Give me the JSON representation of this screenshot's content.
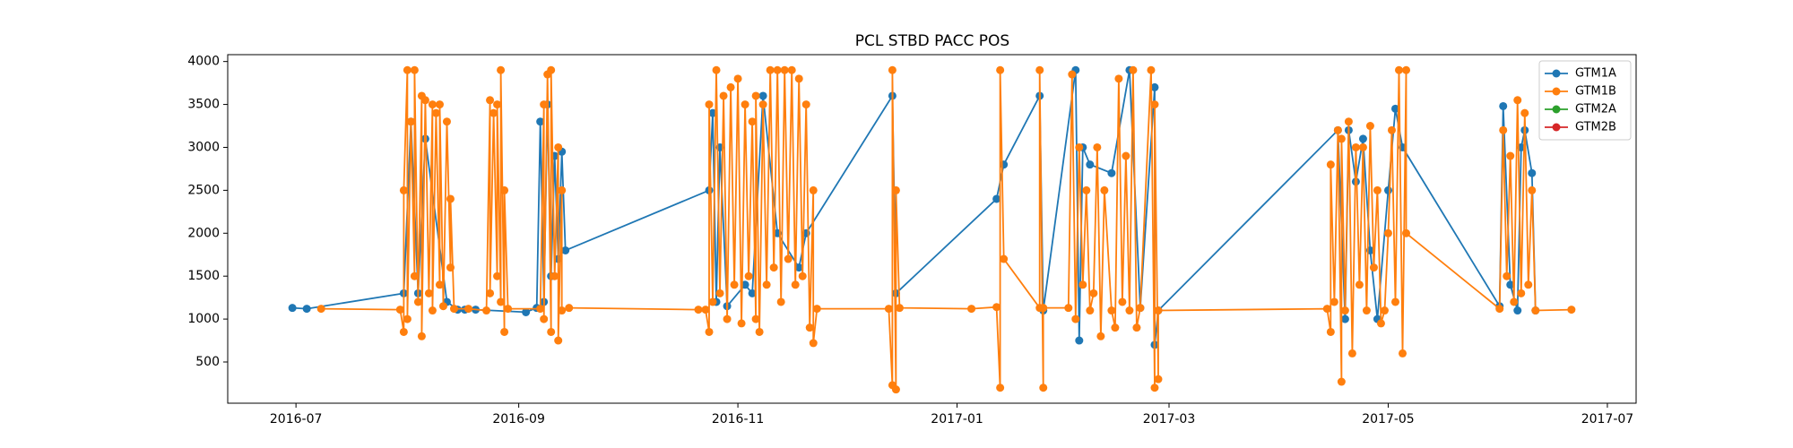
{
  "chart_data": {
    "type": "line",
    "title": "PCL STBD PACC POS",
    "xlim": [
      "2016-06-12",
      "2017-07-09"
    ],
    "xticks": [
      {
        "value": "2016-07-01",
        "label": "2016-07"
      },
      {
        "value": "2016-09-01",
        "label": "2016-09"
      },
      {
        "value": "2016-11-01",
        "label": "2016-11"
      },
      {
        "value": "2017-01-01",
        "label": "2017-01"
      },
      {
        "value": "2017-03-01",
        "label": "2017-03"
      },
      {
        "value": "2017-05-01",
        "label": "2017-05"
      },
      {
        "value": "2017-07-01",
        "label": "2017-07"
      }
    ],
    "ylim": [
      20,
      4080
    ],
    "yticks": [
      500,
      1000,
      1500,
      2000,
      2500,
      3000,
      3500,
      4000
    ],
    "grid": false,
    "legend": "upper right",
    "series": [
      {
        "name": "GTM1A",
        "color": "#1f77b4",
        "x": [
          "2016-06-30",
          "2016-07-04",
          "2016-07-31",
          "2016-08-02",
          "2016-08-04",
          "2016-08-06",
          "2016-08-12",
          "2016-08-15",
          "2016-08-17",
          "2016-08-20",
          "2016-09-03",
          "2016-09-06",
          "2016-09-07",
          "2016-09-08",
          "2016-09-09",
          "2016-09-10",
          "2016-09-11",
          "2016-09-12",
          "2016-09-13",
          "2016-09-14",
          "2016-10-24",
          "2016-10-25",
          "2016-10-26",
          "2016-10-27",
          "2016-10-29",
          "2016-11-03",
          "2016-11-05",
          "2016-11-08",
          "2016-11-12",
          "2016-11-18",
          "2016-11-20",
          "2016-12-14",
          "2016-12-15",
          "2017-01-12",
          "2017-01-14",
          "2017-01-24",
          "2017-01-25",
          "2017-02-03",
          "2017-02-04",
          "2017-02-05",
          "2017-02-07",
          "2017-02-13",
          "2017-02-18",
          "2017-02-21",
          "2017-02-25",
          "2017-02-25",
          "2017-02-26",
          "2017-04-17",
          "2017-04-19",
          "2017-04-20",
          "2017-04-22",
          "2017-04-24",
          "2017-04-26",
          "2017-04-28",
          "2017-05-01",
          "2017-05-03",
          "2017-05-05",
          "2017-06-01",
          "2017-06-02",
          "2017-06-04",
          "2017-06-06",
          "2017-06-07",
          "2017-06-08",
          "2017-06-10",
          "2017-06-11"
        ],
        "values": [
          1130,
          1120,
          1300,
          3300,
          1300,
          3100,
          1200,
          1110,
          1110,
          1110,
          1080,
          1130,
          3300,
          1200,
          3500,
          1500,
          2900,
          1700,
          2950,
          1800,
          2500,
          3400,
          1200,
          3000,
          1150,
          1400,
          1300,
          3600,
          2000,
          1600,
          2000,
          3600,
          1300,
          2400,
          2800,
          3600,
          1100,
          3900,
          750,
          3000,
          2800,
          2700,
          3900,
          1130,
          3700,
          700,
          1100,
          3200,
          1000,
          3200,
          2600,
          3100,
          1800,
          1000,
          2500,
          3450,
          3000,
          1150,
          3480,
          1400,
          1100,
          3000,
          3200,
          2700,
          1100
        ]
      },
      {
        "name": "GTM1B",
        "color": "#ff7f0e",
        "x": [
          "2016-07-08",
          "2016-07-30",
          "2016-07-31",
          "2016-07-31",
          "2016-08-01",
          "2016-08-01",
          "2016-08-02",
          "2016-08-03",
          "2016-08-03",
          "2016-08-04",
          "2016-08-05",
          "2016-08-05",
          "2016-08-06",
          "2016-08-07",
          "2016-08-08",
          "2016-08-08",
          "2016-08-09",
          "2016-08-10",
          "2016-08-10",
          "2016-08-11",
          "2016-08-12",
          "2016-08-13",
          "2016-08-13",
          "2016-08-14",
          "2016-08-18",
          "2016-08-23",
          "2016-08-24",
          "2016-08-24",
          "2016-08-25",
          "2016-08-26",
          "2016-08-26",
          "2016-08-27",
          "2016-08-27",
          "2016-08-28",
          "2016-08-28",
          "2016-08-29",
          "2016-09-07",
          "2016-09-08",
          "2016-09-08",
          "2016-09-09",
          "2016-09-10",
          "2016-09-10",
          "2016-09-11",
          "2016-09-12",
          "2016-09-12",
          "2016-09-13",
          "2016-09-13",
          "2016-09-15",
          "2016-10-21",
          "2016-10-23",
          "2016-10-24",
          "2016-10-24",
          "2016-10-25",
          "2016-10-26",
          "2016-10-27",
          "2016-10-28",
          "2016-10-29",
          "2016-10-30",
          "2016-10-31",
          "2016-11-01",
          "2016-11-02",
          "2016-11-03",
          "2016-11-04",
          "2016-11-05",
          "2016-11-06",
          "2016-11-06",
          "2016-11-07",
          "2016-11-08",
          "2016-11-09",
          "2016-11-10",
          "2016-11-11",
          "2016-11-12",
          "2016-11-13",
          "2016-11-14",
          "2016-11-15",
          "2016-11-16",
          "2016-11-17",
          "2016-11-18",
          "2016-11-19",
          "2016-11-20",
          "2016-11-21",
          "2016-11-22",
          "2016-11-22",
          "2016-11-23",
          "2016-12-13",
          "2016-12-14",
          "2016-12-14",
          "2016-12-15",
          "2016-12-15",
          "2016-12-16",
          "2017-01-05",
          "2017-01-12",
          "2017-01-13",
          "2017-01-13",
          "2017-01-14",
          "2017-01-24",
          "2017-01-24",
          "2017-01-25",
          "2017-01-25",
          "2017-02-01",
          "2017-02-02",
          "2017-02-03",
          "2017-02-04",
          "2017-02-05",
          "2017-02-06",
          "2017-02-07",
          "2017-02-08",
          "2017-02-09",
          "2017-02-10",
          "2017-02-11",
          "2017-02-13",
          "2017-02-14",
          "2017-02-15",
          "2017-02-16",
          "2017-02-17",
          "2017-02-18",
          "2017-02-19",
          "2017-02-20",
          "2017-02-21",
          "2017-02-24",
          "2017-02-25",
          "2017-02-25",
          "2017-02-26",
          "2017-02-26",
          "2017-04-14",
          "2017-04-15",
          "2017-04-15",
          "2017-04-16",
          "2017-04-17",
          "2017-04-18",
          "2017-04-18",
          "2017-04-19",
          "2017-04-20",
          "2017-04-21",
          "2017-04-22",
          "2017-04-23",
          "2017-04-24",
          "2017-04-25",
          "2017-04-26",
          "2017-04-27",
          "2017-04-28",
          "2017-04-29",
          "2017-04-30",
          "2017-05-01",
          "2017-05-02",
          "2017-05-03",
          "2017-05-04",
          "2017-05-05",
          "2017-05-06",
          "2017-05-06",
          "2017-06-01",
          "2017-06-02",
          "2017-06-03",
          "2017-06-04",
          "2017-06-05",
          "2017-06-06",
          "2017-06-07",
          "2017-06-08",
          "2017-06-09",
          "2017-06-10",
          "2017-06-11",
          "2017-06-21"
        ],
        "values": [
          1120,
          1110,
          850,
          2500,
          3900,
          1000,
          3300,
          1500,
          3900,
          1200,
          3600,
          800,
          3550,
          1300,
          3500,
          1100,
          3400,
          1400,
          3500,
          1150,
          3300,
          1600,
          2400,
          1120,
          1120,
          1100,
          3550,
          1300,
          3400,
          1500,
          3500,
          1200,
          3900,
          850,
          2500,
          1120,
          1120,
          3500,
          1000,
          3850,
          850,
          3900,
          1500,
          3000,
          750,
          2500,
          1100,
          1130,
          1110,
          1110,
          850,
          3500,
          1200,
          3900,
          1300,
          3600,
          1000,
          3700,
          1400,
          3800,
          950,
          3500,
          1500,
          3300,
          1000,
          3600,
          850,
          3500,
          1400,
          3900,
          1600,
          3900,
          1200,
          3900,
          1700,
          3900,
          1400,
          3800,
          1500,
          3500,
          900,
          2500,
          720,
          1120,
          1120,
          230,
          3900,
          180,
          2500,
          1130,
          1120,
          1140,
          200,
          3900,
          1700,
          1130,
          3900,
          200,
          1130,
          1130,
          3850,
          1000,
          3000,
          1400,
          2500,
          1100,
          1300,
          3000,
          800,
          2500,
          1100,
          900,
          3800,
          1200,
          2900,
          1100,
          3900,
          900,
          1130,
          3900,
          200,
          3500,
          300,
          1100,
          1120,
          850,
          2800,
          1200,
          3200,
          270,
          3100,
          1100,
          3300,
          600,
          3000,
          1400,
          3000,
          1100,
          3250,
          1600,
          2500,
          950,
          1100,
          2000,
          3200,
          1200,
          3900,
          600,
          3900,
          2000,
          1120,
          3200,
          1500,
          2900,
          1200,
          3550,
          1300,
          3400,
          1400,
          2500,
          1100,
          1110
        ]
      },
      {
        "name": "GTM2A",
        "color": "#2ca02c",
        "x": [],
        "values": []
      },
      {
        "name": "GTM2B",
        "color": "#d62728",
        "x": [],
        "values": []
      }
    ]
  }
}
